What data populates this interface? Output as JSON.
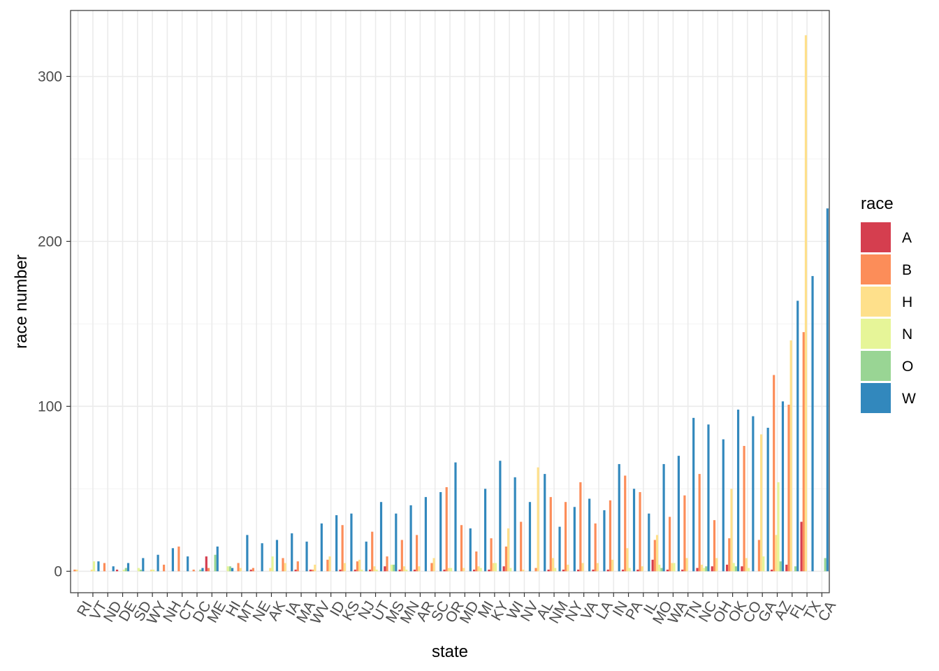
{
  "chart_data": {
    "type": "bar",
    "xlabel": "state",
    "ylabel": "race number",
    "ylim": [
      -13,
      340
    ],
    "yticks": [
      0,
      100,
      200,
      300
    ],
    "grid": true,
    "legend": {
      "title": "race",
      "position": "right"
    },
    "categories": [
      "RI",
      "VT",
      "ND",
      "DE",
      "SD",
      "WY",
      "NH",
      "CT",
      "DC",
      "ME",
      "HI",
      "MT",
      "NE",
      "AK",
      "IA",
      "MA",
      "WV",
      "ID",
      "KS",
      "NJ",
      "UT",
      "MS",
      "MN",
      "AR",
      "SC",
      "OR",
      "MD",
      "MI",
      "KY",
      "WI",
      "NV",
      "AL",
      "NM",
      "NY",
      "VA",
      "LA",
      "IN",
      "PA",
      "IL",
      "MO",
      "WA",
      "TN",
      "NC",
      "OH",
      "OK",
      "CO",
      "GA",
      "AZ",
      "FL",
      "TX",
      "CA"
    ],
    "series": [
      {
        "name": "A",
        "color": "#D53E4F",
        "values": [
          0,
          0,
          0,
          1,
          0,
          0,
          0,
          0,
          0,
          9,
          0,
          0,
          1,
          0,
          0,
          1,
          1,
          0,
          1,
          1,
          1,
          3,
          1,
          1,
          0,
          1,
          0,
          1,
          1,
          3,
          0,
          0,
          1,
          1,
          1,
          1,
          1,
          1,
          1,
          7,
          1,
          1,
          2,
          3,
          4,
          3,
          0,
          1,
          4,
          30,
          0
        ]
      },
      {
        "name": "B",
        "color": "#FC8D59",
        "values": [
          1,
          0,
          5,
          0,
          0,
          0,
          4,
          15,
          1,
          2,
          0,
          5,
          2,
          0,
          8,
          6,
          1,
          7,
          28,
          6,
          24,
          9,
          19,
          22,
          5,
          51,
          28,
          12,
          20,
          15,
          30,
          2,
          45,
          42,
          54,
          29,
          43,
          58,
          48,
          19,
          33,
          46,
          59,
          31,
          20,
          76,
          19,
          119,
          101,
          145,
          0
        ]
      },
      {
        "name": "H",
        "color": "#FEE08B",
        "values": [
          1,
          1,
          0,
          0,
          0,
          1,
          0,
          0,
          0,
          0,
          0,
          2,
          0,
          2,
          5,
          0,
          4,
          9,
          5,
          7,
          3,
          0,
          3,
          3,
          8,
          2,
          2,
          3,
          5,
          26,
          1,
          63,
          8,
          4,
          5,
          5,
          7,
          14,
          3,
          22,
          5,
          8,
          4,
          8,
          50,
          8,
          83,
          22,
          140,
          325,
          0
        ]
      },
      {
        "name": "N",
        "color": "#E6F598",
        "values": [
          0,
          6,
          0,
          1,
          2,
          1,
          0,
          0,
          0,
          0,
          3,
          0,
          0,
          9,
          0,
          0,
          0,
          0,
          0,
          1,
          1,
          4,
          1,
          0,
          0,
          2,
          0,
          2,
          5,
          2,
          0,
          0,
          2,
          0,
          0,
          0,
          0,
          2,
          0,
          4,
          5,
          0,
          2,
          0,
          5,
          2,
          9,
          54,
          0,
          0,
          0
        ]
      },
      {
        "name": "O",
        "color": "#99D594",
        "values": [
          0,
          0,
          0,
          2,
          1,
          0,
          0,
          0,
          1,
          10,
          3,
          0,
          0,
          0,
          0,
          0,
          0,
          0,
          0,
          0,
          0,
          4,
          0,
          0,
          0,
          0,
          0,
          0,
          0,
          0,
          0,
          0,
          0,
          0,
          0,
          0,
          0,
          0,
          0,
          2,
          0,
          0,
          3,
          0,
          3,
          0,
          0,
          6,
          3,
          0,
          8
        ]
      },
      {
        "name": "W",
        "color": "#3288BD",
        "values": [
          0,
          6,
          3,
          5,
          8,
          10,
          14,
          9,
          2,
          15,
          2,
          22,
          17,
          19,
          23,
          18,
          29,
          34,
          35,
          18,
          42,
          35,
          40,
          45,
          48,
          66,
          26,
          50,
          67,
          57,
          42,
          59,
          27,
          39,
          44,
          37,
          65,
          50,
          35,
          65,
          70,
          93,
          89,
          80,
          98,
          94,
          87,
          103,
          164,
          179,
          220
        ]
      }
    ]
  }
}
